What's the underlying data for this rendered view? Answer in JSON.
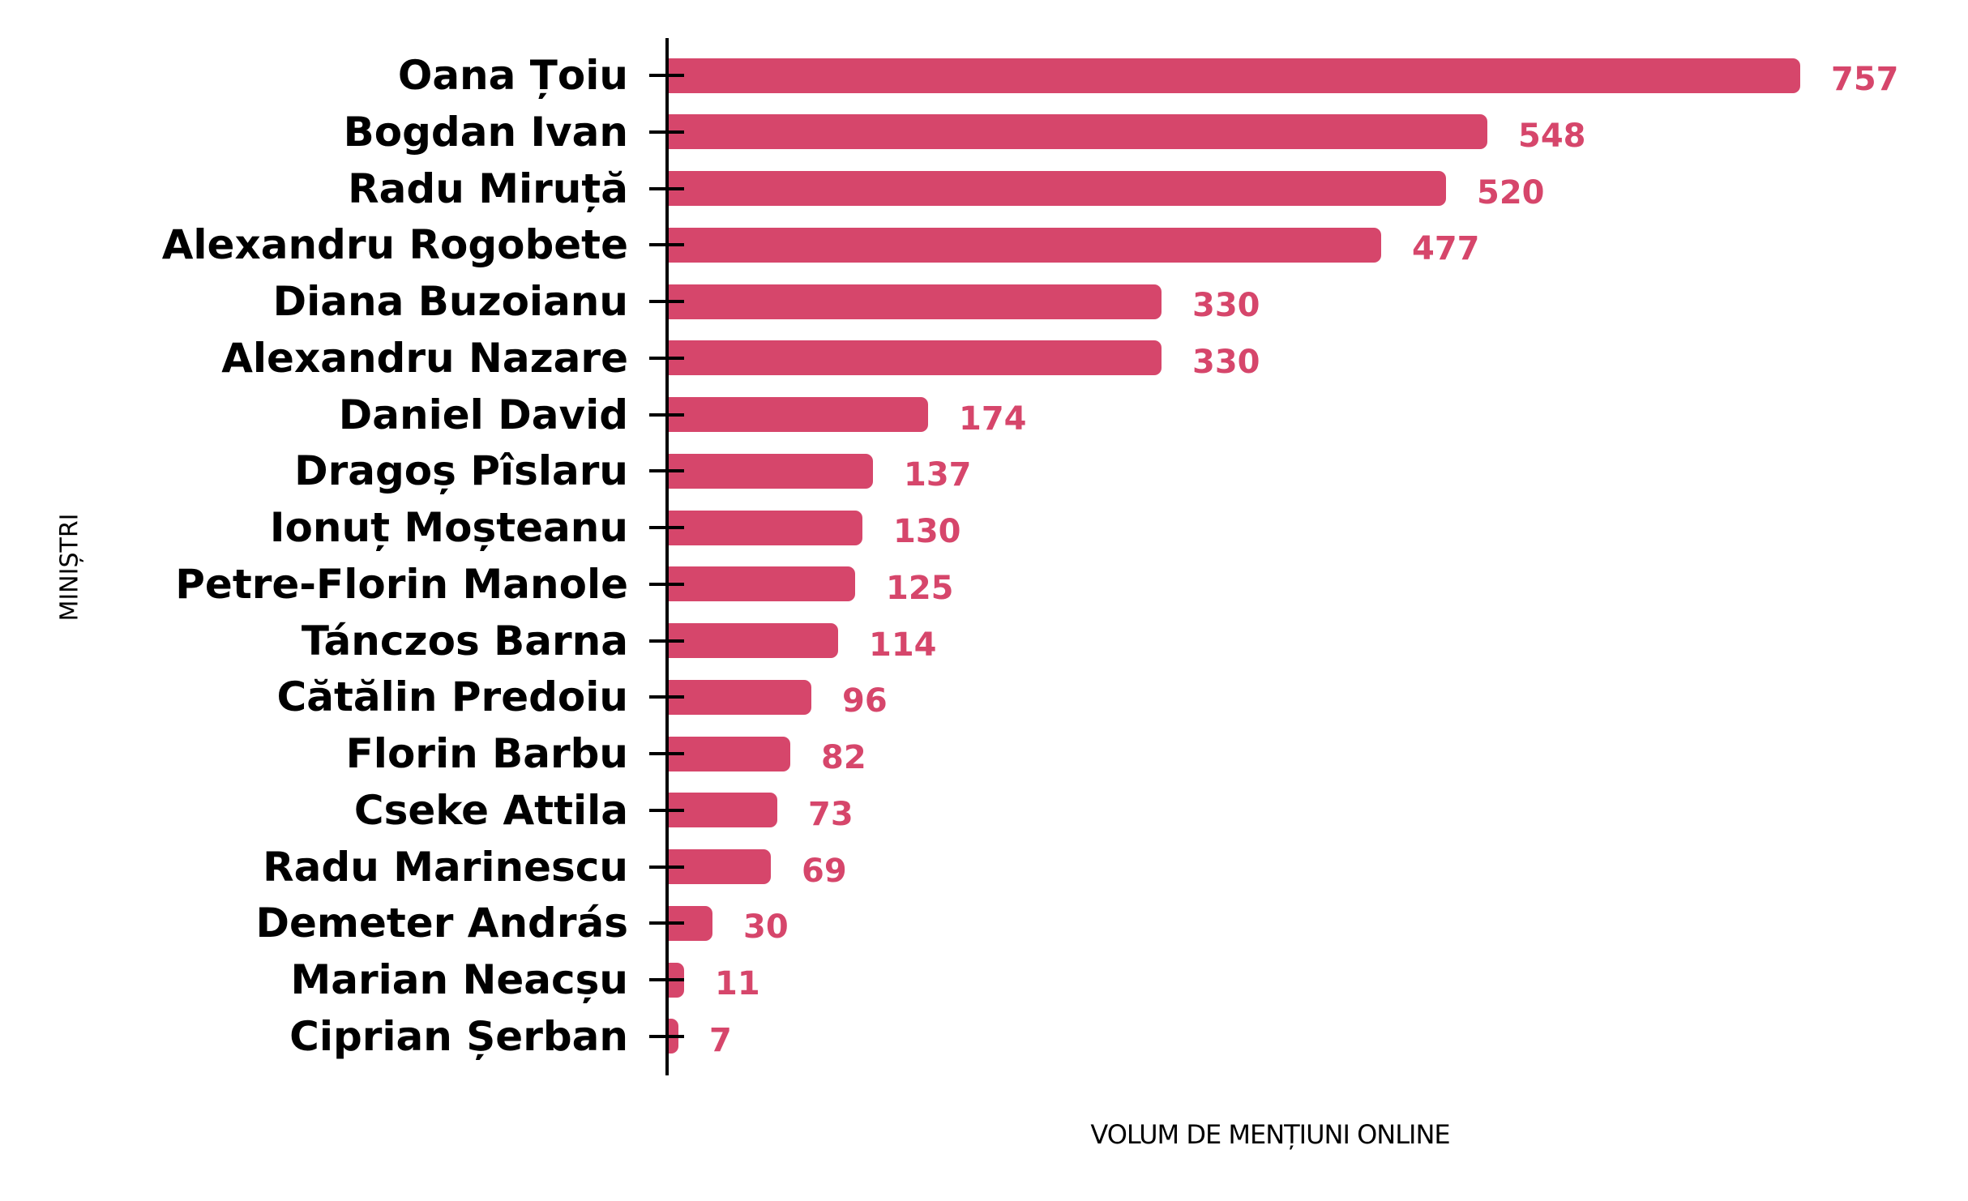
{
  "chart_data": {
    "type": "bar",
    "orientation": "horizontal",
    "xlabel": "VOLUM DE MENȚIUNI ONLINE",
    "ylabel": "MINIȘTRI",
    "categories": [
      "Oana Țoiu",
      "Bogdan Ivan",
      "Radu Miruță",
      "Alexandru Rogobete",
      "Diana Buzoianu",
      "Alexandru Nazare",
      "Daniel David",
      "Dragoș Pîslaru",
      "Ionuț Moșteanu",
      "Petre-Florin Manole",
      "Tánczos Barna",
      "Cătălin Predoiu",
      "Florin Barbu",
      "Cseke Attila",
      "Radu Marinescu",
      "Demeter András",
      "Marian Neacșu",
      "Ciprian Șerban"
    ],
    "values": [
      757,
      548,
      520,
      477,
      330,
      330,
      174,
      137,
      130,
      125,
      114,
      96,
      82,
      73,
      69,
      30,
      11,
      7
    ],
    "xlim": [
      0,
      780
    ],
    "grid": false,
    "legend": null,
    "value_labels_shown": true,
    "colors": {
      "bar": "#d6466b",
      "value_label": "#d6466b",
      "category_label": "#000000",
      "axis": "#000000"
    }
  }
}
